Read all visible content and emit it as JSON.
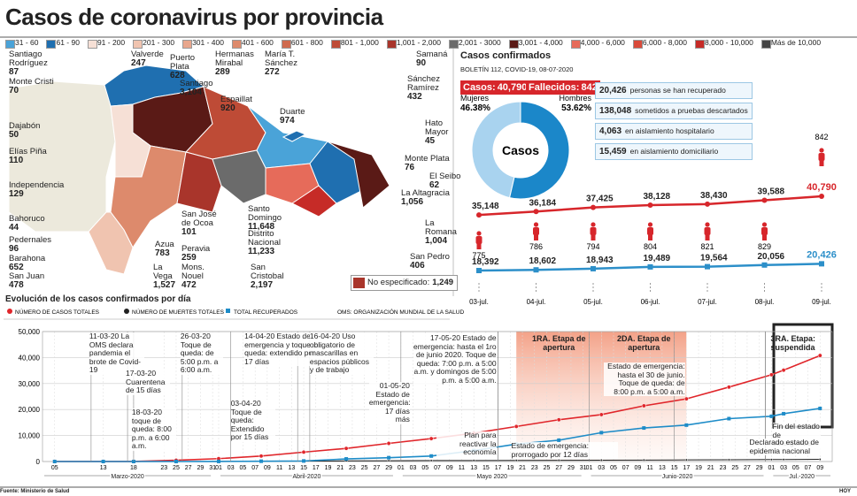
{
  "header": {
    "title": "Casos de coronavirus por provincia"
  },
  "legend": [
    {
      "label": "31 - 60",
      "color": "#4aa3d8"
    },
    {
      "label": "61 - 90",
      "color": "#1f6fb0"
    },
    {
      "label": "91 - 200",
      "color": "#f6e0d6"
    },
    {
      "label": "201 - 300",
      "color": "#f0c4b0"
    },
    {
      "label": "301 - 400",
      "color": "#e8a68c"
    },
    {
      "label": "401 - 600",
      "color": "#dd8a6c"
    },
    {
      "label": "601 - 800",
      "color": "#cf6a4e"
    },
    {
      "label": "801 - 1,000",
      "color": "#be4b36"
    },
    {
      "label": "1,001 - 2,000",
      "color": "#a9352b"
    },
    {
      "label": "2,001 - 3000",
      "color": "#6b6b6b"
    },
    {
      "label": "3,001 - 4,000",
      "color": "#5a1a16"
    },
    {
      "label": "4,000 - 6,000",
      "color": "#e66b5a"
    },
    {
      "label": "6,000 - 8,000",
      "color": "#d94a3a"
    },
    {
      "label": "8,000 - 10,000",
      "color": "#c62b27"
    },
    {
      "label": "Más de 10,000",
      "color": "#444444"
    }
  ],
  "provinces": [
    {
      "name": "Santiago Rodríguez",
      "value": "87"
    },
    {
      "name": "Monte Cristi",
      "value": "70"
    },
    {
      "name": "Dajabón",
      "value": "50"
    },
    {
      "name": "Elías Piña",
      "value": "110"
    },
    {
      "name": "Independencia",
      "value": "129"
    },
    {
      "name": "Bahoruco",
      "value": "44"
    },
    {
      "name": "Pedernales",
      "value": "96"
    },
    {
      "name": "Barahona",
      "value": "652"
    },
    {
      "name": "San Juan",
      "value": "478"
    },
    {
      "name": "Valverde",
      "value": "247"
    },
    {
      "name": "Puerto Plata",
      "value": "628"
    },
    {
      "name": "Santiago",
      "value": "3,104"
    },
    {
      "name": "Hermanas Mirabal",
      "value": "289"
    },
    {
      "name": "María T. Sánchez",
      "value": "272"
    },
    {
      "name": "Espaillat",
      "value": "920"
    },
    {
      "name": "Duarte",
      "value": "974"
    },
    {
      "name": "Samaná",
      "value": "90"
    },
    {
      "name": "Sánchez Ramírez",
      "value": "432"
    },
    {
      "name": "Hato Mayor",
      "value": "45"
    },
    {
      "name": "Monte Plata",
      "value": "76"
    },
    {
      "name": "El Seibo",
      "value": "62"
    },
    {
      "name": "La Altagracia",
      "value": "1,056"
    },
    {
      "name": "La Romana",
      "value": "1,004"
    },
    {
      "name": "San Pedro",
      "value": "406"
    },
    {
      "name": "San José de Ocoa",
      "value": "101"
    },
    {
      "name": "Azua",
      "value": "783"
    },
    {
      "name": "Peravia",
      "value": "259"
    },
    {
      "name": "La Vega",
      "value": "1,527"
    },
    {
      "name": "Mons. Nouel",
      "value": "472"
    },
    {
      "name": "Santo Domingo",
      "value": "11,648"
    },
    {
      "name": "Distrito Nacional",
      "value": "11,233"
    },
    {
      "name": "San Cristobal",
      "value": "2,197"
    }
  ],
  "unspecified": {
    "label": "No especificado:",
    "value": "1,249"
  },
  "summary": {
    "title": "Casos confirmados",
    "bulletin": "BOLETÍN 112, COVID-19, 08-07-2020",
    "cases_label": "Casos:",
    "cases": "40,790",
    "deaths_label": "Fallecidos:",
    "deaths": "842",
    "stats": [
      {
        "value": "20,426",
        "text": "personas se han recuperado"
      },
      {
        "value": "138,048",
        "text": "sometidos a pruebas descartados"
      },
      {
        "value": "4,063",
        "text": "en aislamiento hospitalario"
      },
      {
        "value": "15,459",
        "text": "en aislamiento domiciliario"
      }
    ]
  },
  "footer": {
    "source": "Fuente: Ministerio de Salud",
    "brand": "HOY"
  },
  "chart_data": [
    {
      "type": "pie",
      "center_label": "Casos",
      "categories": [
        "Mujeres",
        "Hombres"
      ],
      "values": [
        46.38,
        53.62
      ],
      "value_labels": [
        "46.38%",
        "53.62%"
      ],
      "colors": [
        "#a9d3ef",
        "#1b87c9"
      ]
    },
    {
      "type": "line",
      "categories": [
        "03-jul.",
        "04-jul.",
        "05-jul.",
        "06-jul.",
        "07-jul.",
        "08-jul.",
        "09-jul."
      ],
      "series": [
        {
          "name": "Casos",
          "color": "#d7262b",
          "values": [
            35148,
            36184,
            37425,
            38128,
            38430,
            39588,
            40790
          ],
          "value_labels": [
            "35,148",
            "36,184",
            "37,425",
            "38,128",
            "38,430",
            "39,588",
            "40,790"
          ]
        },
        {
          "name": "Fallecidos",
          "color": "#d7262b",
          "values": [
            775,
            786,
            794,
            804,
            821,
            829,
            842
          ]
        },
        {
          "name": "Recuperados",
          "color": "#2c8fc9",
          "values": [
            18392,
            18602,
            18943,
            19489,
            19564,
            20056,
            20426
          ],
          "value_labels": [
            "18,392",
            "18,602",
            "18,943",
            "19,489",
            "19,564",
            "20,056",
            "20,426"
          ]
        }
      ]
    },
    {
      "type": "line",
      "title": "Evolución de los casos confirmados por día",
      "note": "OMS: ORGANIZACIÓN MUNDIAL DE LA SALUD",
      "x": [
        "2020-03-05",
        "2020-03-13",
        "2020-03-18",
        "2020-03-25",
        "2020-04-01",
        "2020-04-08",
        "2020-04-15",
        "2020-04-22",
        "2020-04-29",
        "2020-05-06",
        "2020-05-13",
        "2020-05-20",
        "2020-05-27",
        "2020-06-03",
        "2020-06-10",
        "2020-06-17",
        "2020-06-24",
        "2020-07-01",
        "2020-07-03",
        "2020-07-09"
      ],
      "series": [
        {
          "name": "NÚMERO DE CASOS TOTALES",
          "color": "#e0262b",
          "values": [
            5,
            11,
            21,
            488,
            1109,
            2111,
            3614,
            5044,
            6972,
            8807,
            10900,
            13477,
            16068,
            18040,
            21437,
            24105,
            28631,
            33387,
            35148,
            40790
          ]
        },
        {
          "name": "NÚMERO DE MUERTES TOTALES",
          "color": "#222222",
          "values": [
            0,
            0,
            1,
            10,
            57,
            118,
            183,
            245,
            301,
            373,
            398,
            441,
            474,
            516,
            561,
            635,
            684,
            761,
            775,
            842
          ]
        },
        {
          "name": "TOTAL RECUPERADOS",
          "color": "#1e8cc8",
          "values": [
            0,
            0,
            0,
            3,
            26,
            112,
            210,
            1004,
            1475,
            2118,
            4200,
            6700,
            8200,
            11100,
            12900,
            14000,
            16500,
            17400,
            18392,
            20426
          ]
        }
      ],
      "xlim": [
        "2020-03-03",
        "2020-07-11"
      ],
      "ylim": [
        0,
        50000
      ],
      "yticks": [
        0,
        {
          "value": 10000,
          "label": "10,000"
        },
        {
          "value": 20000,
          "label": "20,000"
        },
        {
          "value": 30000,
          "label": "30,000"
        },
        {
          "value": 40000,
          "label": "40,000"
        },
        {
          "value": 50000,
          "label": "50,000"
        }
      ],
      "xticks": [
        {
          "value": "2020-03-05",
          "label": "05"
        },
        {
          "value": "2020-03-13",
          "label": "13"
        },
        {
          "value": "2020-03-18",
          "label": "18"
        },
        {
          "value": "2020-03-23",
          "label": "23"
        },
        {
          "value": "2020-03-25",
          "label": "25"
        },
        {
          "value": "2020-03-27",
          "label": "27"
        },
        {
          "value": "2020-03-29",
          "label": "29"
        },
        {
          "value": "2020-03-31",
          "label": "31"
        },
        {
          "value": "2020-04-01",
          "label": "01"
        },
        {
          "value": "2020-04-03",
          "label": "03"
        },
        {
          "value": "2020-04-05",
          "label": "05"
        },
        {
          "value": "2020-04-07",
          "label": "07"
        },
        {
          "value": "2020-04-09",
          "label": "09"
        },
        {
          "value": "2020-04-11",
          "label": "11"
        },
        {
          "value": "2020-04-13",
          "label": "13"
        },
        {
          "value": "2020-04-15",
          "label": "15"
        },
        {
          "value": "2020-04-17",
          "label": "17"
        },
        {
          "value": "2020-04-19",
          "label": "19"
        },
        {
          "value": "2020-04-21",
          "label": "21"
        },
        {
          "value": "2020-04-23",
          "label": "23"
        },
        {
          "value": "2020-04-25",
          "label": "25"
        },
        {
          "value": "2020-04-27",
          "label": "27"
        },
        {
          "value": "2020-04-29",
          "label": "29"
        },
        {
          "value": "2020-05-01",
          "label": "01"
        },
        {
          "value": "2020-05-03",
          "label": "03"
        },
        {
          "value": "2020-05-05",
          "label": "05"
        },
        {
          "value": "2020-05-07",
          "label": "07"
        },
        {
          "value": "2020-05-09",
          "label": "09"
        },
        {
          "value": "2020-05-11",
          "label": "11"
        },
        {
          "value": "2020-05-13",
          "label": "13"
        },
        {
          "value": "2020-05-15",
          "label": "15"
        },
        {
          "value": "2020-05-17",
          "label": "17"
        },
        {
          "value": "2020-05-19",
          "label": "19"
        },
        {
          "value": "2020-05-21",
          "label": "21"
        },
        {
          "value": "2020-05-23",
          "label": "23"
        },
        {
          "value": "2020-05-25",
          "label": "25"
        },
        {
          "value": "2020-05-27",
          "label": "27"
        },
        {
          "value": "2020-05-29",
          "label": "29"
        },
        {
          "value": "2020-05-31",
          "label": "31"
        },
        {
          "value": "2020-06-01",
          "label": "01"
        },
        {
          "value": "2020-06-03",
          "label": "03"
        },
        {
          "value": "2020-06-05",
          "label": "05"
        },
        {
          "value": "2020-06-07",
          "label": "07"
        },
        {
          "value": "2020-06-09",
          "label": "09"
        },
        {
          "value": "2020-06-11",
          "label": "11"
        },
        {
          "value": "2020-06-13",
          "label": "13"
        },
        {
          "value": "2020-06-15",
          "label": "15"
        },
        {
          "value": "2020-06-17",
          "label": "17"
        },
        {
          "value": "2020-06-19",
          "label": "19"
        },
        {
          "value": "2020-06-21",
          "label": "21"
        },
        {
          "value": "2020-06-23",
          "label": "23"
        },
        {
          "value": "2020-06-25",
          "label": "25"
        },
        {
          "value": "2020-06-27",
          "label": "27"
        },
        {
          "value": "2020-06-29",
          "label": "29"
        },
        {
          "value": "2020-07-01",
          "label": "01"
        },
        {
          "value": "2020-07-03",
          "label": "03"
        },
        {
          "value": "2020-07-05",
          "label": "05"
        },
        {
          "value": "2020-07-07",
          "label": "07"
        },
        {
          "value": "2020-07-09",
          "label": "09"
        }
      ],
      "months": [
        {
          "label": "Marzo-2020",
          "start": "2020-03-03",
          "end": "2020-03-31"
        },
        {
          "label": "Abril-2020",
          "start": "2020-04-01",
          "end": "2020-04-30"
        },
        {
          "label": "Mayo 2020",
          "start": "2020-05-01",
          "end": "2020-05-31"
        },
        {
          "label": "Junio-2020",
          "start": "2020-06-01",
          "end": "2020-06-30"
        },
        {
          "label": "Jul.-2020",
          "start": "2020-07-01",
          "end": "2020-07-11"
        }
      ],
      "phases": [
        {
          "label": "1RA. Etapa de apertura",
          "start": "2020-05-20",
          "end": "2020-06-03"
        },
        {
          "label": "2DA. Etapa de apertura",
          "start": "2020-06-03",
          "end": "2020-06-17"
        },
        {
          "label": "3RA. Etapa: suspendida",
          "start": "2020-06-30"
        }
      ],
      "annotations": [
        {
          "date": "2020-03-11",
          "text": "11-03-20 La OMS declara pandemia el brote de Covid-19"
        },
        {
          "date": "2020-03-17",
          "text": "17-03-20 Cuarentena de 15 días"
        },
        {
          "date": "2020-03-18",
          "text": "18-03-20 toque de queda: 8:00 p.m. a 6:00 a.m."
        },
        {
          "date": "2020-03-26",
          "text": "26-03-20 Toque de queda: de 5:00 p.m. a 6:00 a.m."
        },
        {
          "date": "2020-04-14",
          "text": "14-04-20 Estado de emergencia y toque de queda: extendido por 17 días"
        },
        {
          "date": "2020-04-03",
          "text": "03-04-20 Toque de queda: Extendido por 15 días"
        },
        {
          "date": "2020-04-16",
          "text": "16-04-20 Uso obligatorio de mascarillas en espacios públicos y de trabajo"
        },
        {
          "date": "2020-05-01",
          "text": "01-05-20 Estado de emergencia: 17 días más"
        },
        {
          "date": "2020-05-17",
          "text": "17-05-20 Estado de emergencia: hasta el 1ro de junio 2020. Toque de queda: 7:00 p.m. a 5:00 a.m. y domingos de 5:00 p.m. a 5:00 a.m."
        },
        {
          "date": "2020-05-17",
          "text": "Plan para reactivar la economía"
        },
        {
          "date": "2020-06-01",
          "text": "Estado de emergencia: prorrogado por 12 días"
        },
        {
          "date": "2020-06-15",
          "text": "Estado de emergencia: hasta el 30 de junio. Toque de queda: de 8:00 p.m. a 5:00 a.m."
        },
        {
          "date": "2020-06-30",
          "text": "Fin del estado de emergencia"
        },
        {
          "date": "2020-06-30",
          "text": "Declarado estado de epidemia nacional"
        }
      ]
    }
  ]
}
